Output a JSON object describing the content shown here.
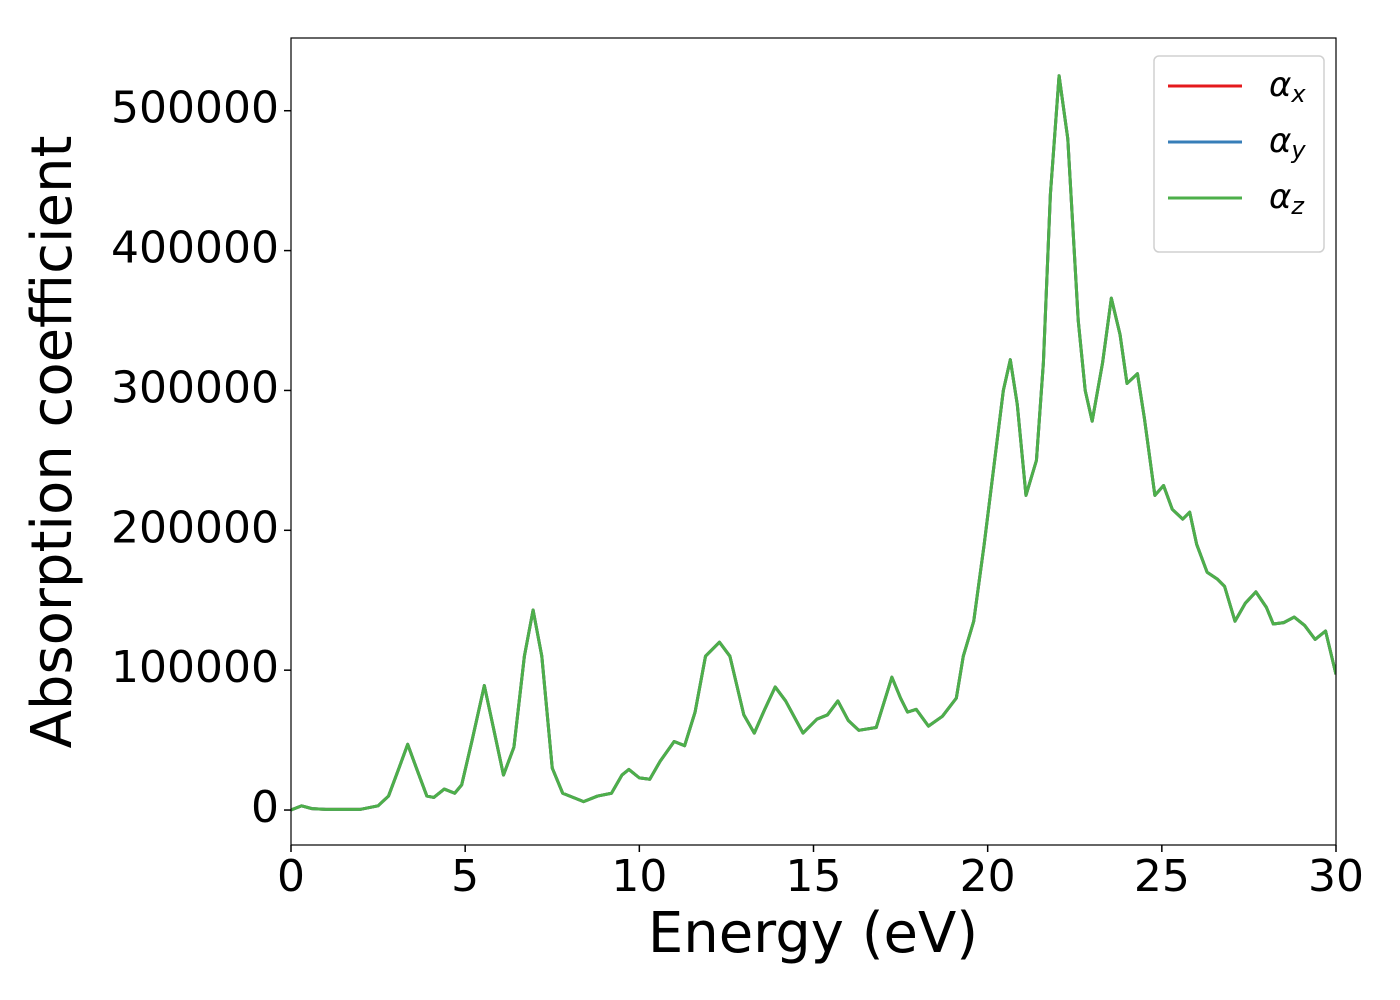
{
  "chart_data": {
    "type": "line",
    "xlabel": "Energy (eV)",
    "ylabel": "Absorption coefficient",
    "x": [
      0,
      0.3,
      0.6,
      1,
      2,
      2.5,
      2.8,
      3.1,
      3.35,
      3.6,
      3.9,
      4.1,
      4.4,
      4.7,
      4.9,
      5.2,
      5.55,
      5.8,
      6.1,
      6.4,
      6.7,
      6.95,
      7.2,
      7.5,
      7.8,
      8.4,
      8.8,
      9.2,
      9.5,
      9.7,
      10.0,
      10.3,
      10.6,
      11.0,
      11.3,
      11.6,
      11.9,
      12.3,
      12.6,
      13.0,
      13.3,
      13.6,
      13.9,
      14.2,
      14.7,
      15.1,
      15.4,
      15.7,
      16.0,
      16.3,
      16.8,
      17.0,
      17.25,
      17.5,
      17.7,
      17.95,
      18.3,
      18.7,
      19.1,
      19.3,
      19.6,
      19.9,
      20.2,
      20.45,
      20.65,
      20.85,
      21.1,
      21.4,
      21.6,
      21.8,
      22.05,
      22.3,
      22.6,
      22.8,
      23.0,
      23.3,
      23.55,
      23.8,
      24.0,
      24.3,
      24.5,
      24.8,
      25.05,
      25.3,
      25.6,
      25.8,
      26.0,
      26.3,
      26.6,
      26.8,
      27.1,
      27.4,
      27.7,
      28.0,
      28.2,
      28.5,
      28.8,
      29.1,
      29.4,
      29.7,
      30.0
    ],
    "series": [
      {
        "name": "αx",
        "color": "#e41a1c",
        "values": [
          0,
          3000,
          1000,
          500,
          500,
          3000,
          10000,
          30000,
          47000,
          30000,
          10000,
          9000,
          15000,
          12000,
          18000,
          50000,
          89000,
          60000,
          25000,
          45000,
          110000,
          143000,
          110000,
          30000,
          12000,
          6000,
          10000,
          12000,
          25000,
          29000,
          23000,
          22000,
          35000,
          49000,
          46000,
          70000,
          110000,
          120000,
          110000,
          68000,
          55000,
          72000,
          88000,
          78000,
          55000,
          65000,
          68000,
          78000,
          64000,
          57000,
          59000,
          75000,
          95000,
          80000,
          70000,
          72000,
          60000,
          67000,
          80000,
          110000,
          135000,
          190000,
          250000,
          300000,
          322000,
          290000,
          225000,
          250000,
          320000,
          440000,
          525000,
          480000,
          350000,
          300000,
          278000,
          320000,
          366000,
          340000,
          305000,
          312000,
          280000,
          225000,
          232000,
          215000,
          208000,
          213000,
          190000,
          170000,
          165000,
          160000,
          135000,
          148000,
          156000,
          145000,
          133000,
          134000,
          138000,
          132000,
          122000,
          128000,
          97000
        ]
      },
      {
        "name": "αy",
        "color": "#377eb8",
        "values": [
          0,
          3000,
          1000,
          500,
          500,
          3000,
          10000,
          30000,
          47000,
          30000,
          10000,
          9000,
          15000,
          12000,
          18000,
          50000,
          89000,
          60000,
          25000,
          45000,
          110000,
          143000,
          110000,
          30000,
          12000,
          6000,
          10000,
          12000,
          25000,
          29000,
          23000,
          22000,
          35000,
          49000,
          46000,
          70000,
          110000,
          120000,
          110000,
          68000,
          55000,
          72000,
          88000,
          78000,
          55000,
          65000,
          68000,
          78000,
          64000,
          57000,
          59000,
          75000,
          95000,
          80000,
          70000,
          72000,
          60000,
          67000,
          80000,
          110000,
          135000,
          190000,
          250000,
          300000,
          322000,
          290000,
          225000,
          250000,
          320000,
          440000,
          525000,
          480000,
          350000,
          300000,
          278000,
          320000,
          366000,
          340000,
          305000,
          312000,
          280000,
          225000,
          232000,
          215000,
          208000,
          213000,
          190000,
          170000,
          165000,
          160000,
          135000,
          148000,
          156000,
          145000,
          133000,
          134000,
          138000,
          132000,
          122000,
          128000,
          97000
        ]
      },
      {
        "name": "αz",
        "color": "#4daf4a",
        "values": [
          0,
          3000,
          1000,
          500,
          500,
          3000,
          10000,
          30000,
          47000,
          30000,
          10000,
          9000,
          15000,
          12000,
          18000,
          50000,
          89000,
          60000,
          25000,
          45000,
          110000,
          143000,
          110000,
          30000,
          12000,
          6000,
          10000,
          12000,
          25000,
          29000,
          23000,
          22000,
          35000,
          49000,
          46000,
          70000,
          110000,
          120000,
          110000,
          68000,
          55000,
          72000,
          88000,
          78000,
          55000,
          65000,
          68000,
          78000,
          64000,
          57000,
          59000,
          75000,
          95000,
          80000,
          70000,
          72000,
          60000,
          67000,
          80000,
          110000,
          135000,
          190000,
          250000,
          300000,
          322000,
          290000,
          225000,
          250000,
          320000,
          440000,
          525000,
          480000,
          350000,
          300000,
          278000,
          320000,
          366000,
          340000,
          305000,
          312000,
          280000,
          225000,
          232000,
          215000,
          208000,
          213000,
          190000,
          170000,
          165000,
          160000,
          135000,
          148000,
          156000,
          145000,
          133000,
          134000,
          138000,
          132000,
          122000,
          128000,
          97000
        ]
      }
    ],
    "xlim": [
      0,
      30
    ],
    "xticks": [
      0,
      5,
      10,
      15,
      20,
      25,
      30
    ],
    "ylim": [
      -25000,
      552000
    ],
    "yticks": [
      0,
      100000,
      200000,
      300000,
      400000,
      500000
    ],
    "grid": false,
    "legend": "upper right"
  }
}
